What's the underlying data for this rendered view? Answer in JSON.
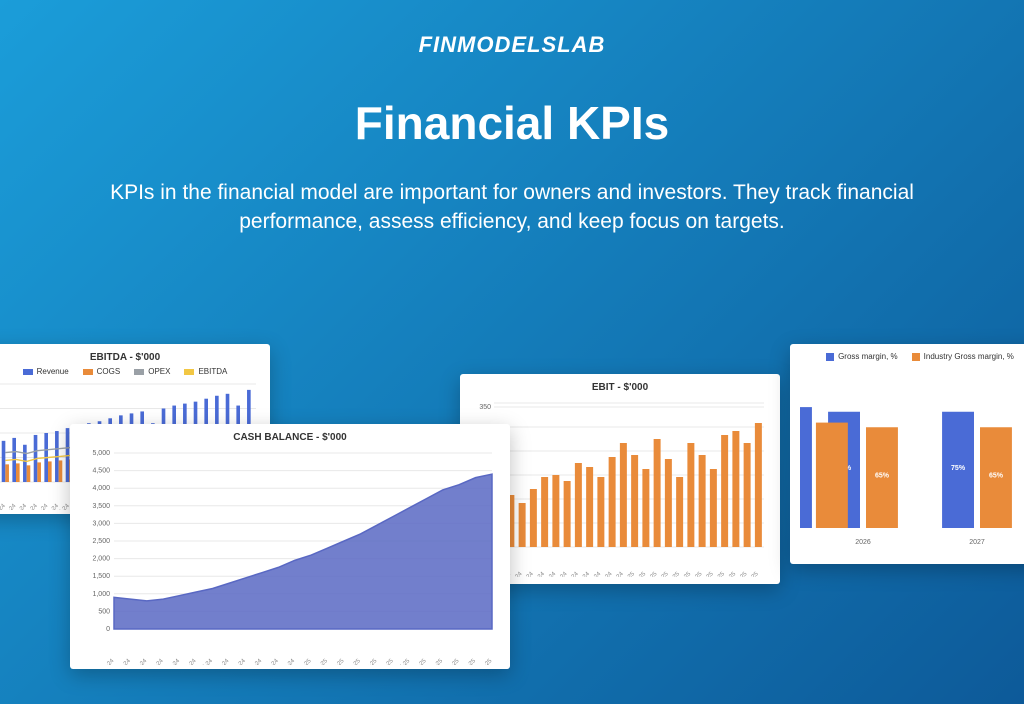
{
  "logo": "FINMODELSLAB",
  "title": "Financial KPIs",
  "subtitle": "KPIs in the financial model are important for owners and investors. They track financial performance, assess efficiency, and keep focus on targets.",
  "months": [
    "Jan-24",
    "Feb-24",
    "Mar-24",
    "Apr-24",
    "May-24",
    "Jun-24",
    "Jul-24",
    "Aug-24",
    "Sep-24",
    "Oct-24",
    "Nov-24",
    "Dec-24",
    "Jan-25",
    "Feb-25",
    "Mar-25",
    "Apr-25",
    "May-25",
    "Jun-25",
    "Jul-25",
    "Aug-25",
    "Sep-25",
    "Oct-25",
    "Nov-25",
    "Dec-25"
  ],
  "ebitda": {
    "title": "EBITDA - $'000",
    "legend": [
      {
        "label": "Revenue",
        "color": "#4a6bd6"
      },
      {
        "label": "COGS",
        "color": "#e98b3a"
      },
      {
        "label": "OPEX",
        "color": "#9aa0a6"
      },
      {
        "label": "EBITDA",
        "color": "#f2c744"
      }
    ],
    "revenue_color": "#4a6bd6",
    "cogs_color": "#e98b3a",
    "line1_color": "#9aa0a6",
    "line2_color": "#f2c744",
    "bars1": [
      42,
      45,
      38,
      48,
      50,
      52,
      55,
      58,
      60,
      62,
      65,
      68,
      70,
      72,
      60,
      75,
      78,
      80,
      82,
      85,
      88,
      90,
      78,
      94
    ],
    "bars2": [
      18,
      19,
      17,
      20,
      21,
      22,
      23,
      24,
      25,
      25,
      26,
      27,
      28,
      29,
      25,
      30,
      31,
      32,
      33,
      34,
      35,
      36,
      32,
      38
    ],
    "line1": [
      30,
      31,
      29,
      32,
      33,
      34,
      35,
      36,
      37,
      37,
      38,
      39,
      40,
      41,
      38,
      42,
      43,
      44,
      45,
      46,
      47,
      48,
      44,
      50
    ],
    "line2": [
      22,
      23,
      21,
      24,
      25,
      26,
      27,
      28,
      29,
      29,
      30,
      31,
      32,
      33,
      30,
      34,
      35,
      36,
      37,
      38,
      39,
      40,
      36,
      42
    ],
    "ymax": 100
  },
  "cash": {
    "title": "CASH BALANCE - $'000",
    "color": "#5968c3",
    "yticks": [
      0,
      500,
      1000,
      1500,
      2000,
      2500,
      3000,
      3500,
      4000,
      4500,
      5000
    ],
    "values": [
      900,
      850,
      800,
      850,
      950,
      1050,
      1150,
      1300,
      1450,
      1600,
      1750,
      1950,
      2100,
      2300,
      2500,
      2700,
      2950,
      3200,
      3450,
      3700,
      3950,
      4100,
      4300,
      4400
    ],
    "ymax": 5000
  },
  "ebit": {
    "title": "EBIT - $'000",
    "color": "#e98b3a",
    "yticks": [
      300,
      350
    ],
    "values": [
      120,
      130,
      110,
      145,
      175,
      180,
      165,
      210,
      200,
      175,
      225,
      260,
      230,
      195,
      270,
      220,
      175,
      260,
      230,
      195,
      280,
      290,
      260,
      310
    ],
    "ymax": 360
  },
  "margin": {
    "legend": [
      {
        "label": "Gross margin, %",
        "color": "#4a6bd6"
      },
      {
        "label": "Industry Gross margin, %",
        "color": "#e98b3a"
      }
    ],
    "years": [
      "2026",
      "2027"
    ],
    "pairs": [
      {
        "v1": 75,
        "v2": 65
      },
      {
        "v1": 75,
        "v2": 65
      }
    ],
    "ymax": 100,
    "c1": "#4a6bd6",
    "c2": "#e98b3a"
  }
}
